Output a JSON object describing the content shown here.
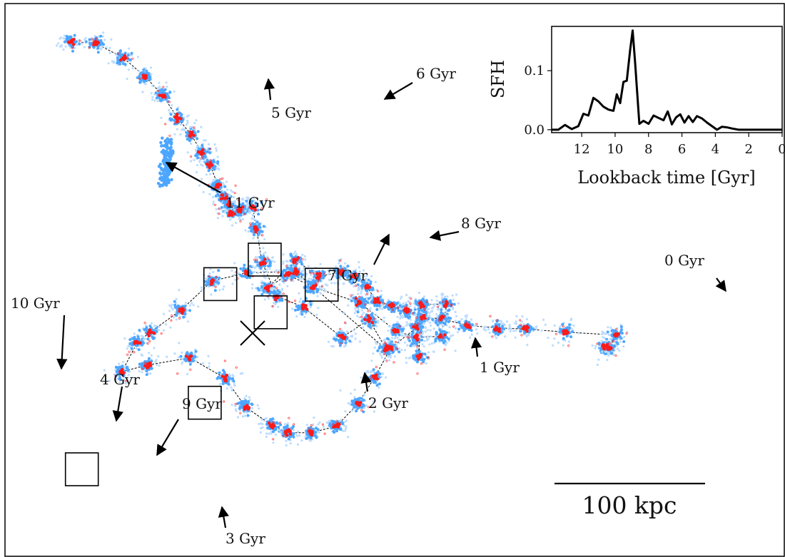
{
  "chart_data": [
    {
      "type": "scatter",
      "description_units": "kpc (projected)",
      "center_marker": "x",
      "colors": {
        "particles": "#4da6ff",
        "particle_haze": "#bcdcff",
        "core": "#ff1a1a",
        "path": "#000000",
        "frame": "#000000"
      },
      "scale_bar": {
        "label": "100 kpc",
        "length_kpc": 100
      },
      "tracks": [
        {
          "points": [
            [
              348,
              -40
            ],
            [
              358,
              -40
            ],
            [
              368,
              -20
            ],
            [
              284,
              -15
            ],
            [
              218,
              -10
            ],
            [
              170,
              -8
            ],
            [
              120,
              -4
            ],
            [
              78,
              7
            ],
            [
              45,
              10
            ],
            [
              18,
              20
            ],
            [
              -6,
              29
            ],
            [
              -32,
              37
            ],
            [
              -47,
              60
            ],
            [
              -68,
              78
            ],
            [
              -90,
              85
            ],
            [
              -129,
              78
            ],
            [
              -166,
              105
            ],
            [
              -214,
              58
            ]
          ]
        },
        {
          "points": [
            [
              -214,
              58
            ],
            [
              -180,
              81
            ],
            [
              -137,
              60
            ],
            [
              -60,
              34
            ],
            [
              0,
              -12
            ],
            [
              34,
              -24
            ],
            [
              76,
              -22
            ],
            [
              86,
              32
            ],
            [
              44,
              31
            ],
            [
              39,
              -56
            ],
            [
              36,
              -7
            ],
            [
              -8,
              -42
            ],
            [
              -34,
              -90
            ],
            [
              -62,
              -134
            ],
            [
              -98,
              -172
            ],
            [
              -140,
              -183
            ],
            [
              -180,
              -183
            ],
            [
              -207,
              -170
            ],
            [
              -250,
              -140
            ],
            [
              -284,
              -92
            ],
            [
              -343,
              -58
            ],
            [
              -413,
              -70
            ],
            [
              -456,
              -81
            ]
          ]
        },
        {
          "points": [
            [
              -456,
              -81
            ],
            [
              -431,
              -33
            ],
            [
              -410,
              -16
            ],
            [
              -357,
              22
            ],
            [
              -306,
              70
            ],
            [
              -248,
              84
            ],
            [
              -167,
              86
            ],
            [
              -15,
              -44
            ],
            [
              -44,
              6
            ],
            [
              -89,
              -24
            ],
            [
              -154,
              27
            ]
          ]
        },
        {
          "points": [
            [
              -154,
              27
            ],
            [
              -198,
              45
            ],
            [
              -222,
              101
            ],
            [
              -232,
              158
            ],
            [
              -238,
              194
            ],
            [
              -259,
              189
            ],
            [
              -274,
              185
            ],
            [
              -278,
              199
            ],
            [
              -285,
              209
            ],
            [
              -296,
              230
            ],
            [
              -309,
              264
            ],
            [
              -323,
              285
            ],
            [
              -341,
              315
            ],
            [
              -363,
              342
            ],
            [
              -388,
              380
            ],
            [
              -418,
              412
            ],
            [
              -454,
              443
            ],
            [
              -500,
              467
            ],
            [
              -540,
              470
            ]
          ]
        }
      ],
      "age_labels": [
        {
          "text": "0 Gyr"
        },
        {
          "text": "1 Gyr"
        },
        {
          "text": "2 Gyr"
        },
        {
          "text": "3 Gyr"
        },
        {
          "text": "4 Gyr"
        },
        {
          "text": "5 Gyr"
        },
        {
          "text": "6 Gyr"
        },
        {
          "text": "7 Gyr"
        },
        {
          "text": "8 Gyr"
        },
        {
          "text": "9 Gyr"
        },
        {
          "text": "10 Gyr"
        },
        {
          "text": "11 Gyr"
        }
      ],
      "boxed_snapshots": 6
    },
    {
      "type": "line",
      "xlabel": "Lookback time [Gyr]",
      "ylabel": "SFH",
      "xlim": [
        13.8,
        0
      ],
      "ylim": [
        -0.005,
        0.175
      ],
      "xticks": [
        12,
        10,
        8,
        6,
        4,
        2,
        0
      ],
      "xtick_labels": [
        "12",
        "10",
        "8",
        "6",
        "4",
        "2",
        "0"
      ],
      "yticks": [
        0.0,
        0.1
      ],
      "ytick_labels": [
        "0.0",
        "0.1"
      ],
      "series": [
        {
          "color": "#000000",
          "x": [
            13.8,
            13.4,
            13.0,
            12.6,
            12.2,
            11.9,
            11.6,
            11.3,
            11.0,
            10.7,
            10.4,
            10.1,
            9.9,
            9.7,
            9.5,
            9.3,
            9.1,
            8.95,
            8.8,
            8.55,
            8.3,
            8.0,
            7.7,
            7.4,
            7.1,
            6.85,
            6.6,
            6.35,
            6.1,
            5.85,
            5.6,
            5.35,
            5.1,
            4.8,
            4.5,
            4.2,
            3.9,
            3.6,
            3.3,
            3.0,
            2.6,
            2.2,
            1.8,
            1.4,
            1.0,
            0.6,
            0.2,
            0.0
          ],
          "y": [
            0.0,
            0.0,
            0.008,
            0.001,
            0.006,
            0.027,
            0.024,
            0.054,
            0.048,
            0.039,
            0.034,
            0.032,
            0.06,
            0.045,
            0.081,
            0.083,
            0.135,
            0.168,
            0.113,
            0.01,
            0.015,
            0.01,
            0.024,
            0.02,
            0.016,
            0.031,
            0.009,
            0.021,
            0.026,
            0.012,
            0.023,
            0.013,
            0.023,
            0.019,
            0.012,
            0.006,
            0.0,
            0.005,
            0.004,
            0.002,
            0.0,
            0.0,
            0.0,
            0.0,
            0.0,
            0.0,
            0.0,
            0.0
          ]
        }
      ]
    }
  ]
}
